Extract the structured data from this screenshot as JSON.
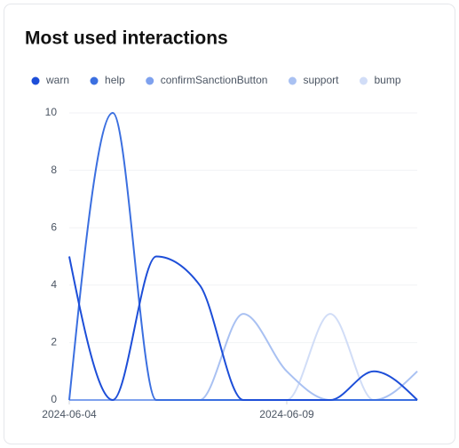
{
  "chart_data": {
    "type": "line",
    "title": "Most used interactions",
    "x": [
      "2024-06-04",
      "2024-06-05",
      "2024-06-06",
      "2024-06-07",
      "2024-06-08",
      "2024-06-09",
      "2024-06-10",
      "2024-06-11",
      "2024-06-12"
    ],
    "xticks": [
      "2024-06-04",
      "2024-06-09"
    ],
    "series": [
      {
        "name": "warn",
        "color": "#1d4ed8",
        "values": [
          5,
          0,
          5,
          4,
          0,
          0,
          0,
          1,
          0
        ]
      },
      {
        "name": "help",
        "color": "#3b6fe0",
        "values": [
          0,
          10,
          0,
          0,
          0,
          0,
          0,
          0,
          0
        ]
      },
      {
        "name": "confirmSanctionButton",
        "color": "#7ea1ee",
        "values": [
          0,
          0,
          0,
          0,
          0,
          0,
          0,
          0,
          0
        ]
      },
      {
        "name": "support",
        "color": "#a9c1f2",
        "values": [
          0,
          0,
          0,
          0,
          3,
          1,
          0,
          0,
          1
        ]
      },
      {
        "name": "bump",
        "color": "#d1ddf7",
        "values": [
          0,
          0,
          0,
          0,
          0,
          0,
          3,
          0,
          0
        ]
      }
    ],
    "ylim": [
      0,
      10
    ],
    "yticks": [
      0,
      2,
      4,
      6,
      8,
      10
    ],
    "grid": true,
    "legend": "top"
  }
}
